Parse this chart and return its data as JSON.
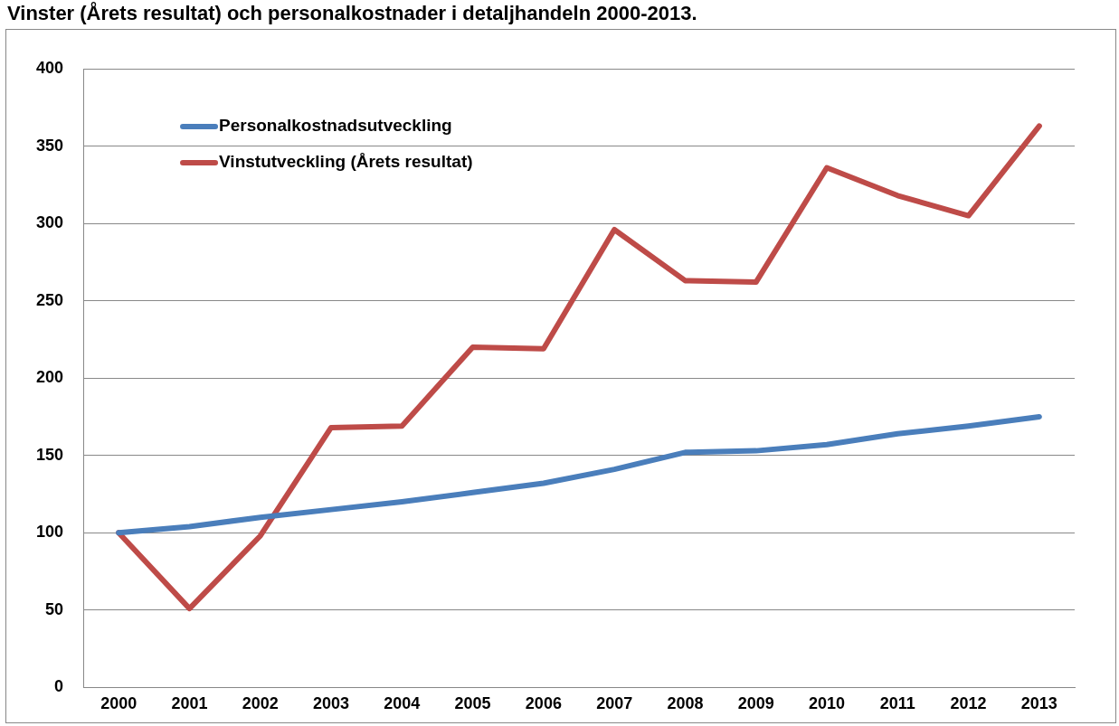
{
  "chart_data": {
    "type": "line",
    "title": "Vinster (Årets resultat) och personalkostnader i detaljhandeln 2000-2013.",
    "categories": [
      "2000",
      "2001",
      "2002",
      "2003",
      "2004",
      "2005",
      "2006",
      "2007",
      "2008",
      "2009",
      "2010",
      "2011",
      "2012",
      "2013"
    ],
    "series": [
      {
        "name": "Personalkostnadsutveckling",
        "color": "#4a7ebb",
        "values": [
          100,
          104,
          110,
          115,
          120,
          126,
          132,
          141,
          152,
          153,
          157,
          164,
          169,
          175
        ]
      },
      {
        "name": "Vinstutveckling (Årets resultat)",
        "color": "#be4b48",
        "values": [
          100,
          51,
          98,
          168,
          169,
          220,
          219,
          296,
          263,
          262,
          336,
          318,
          305,
          363
        ]
      }
    ],
    "ylim": [
      0,
      400
    ],
    "yticks": [
      0,
      50,
      100,
      150,
      200,
      250,
      300,
      350,
      400
    ],
    "grid": "y",
    "legend": "top left",
    "marker": "none",
    "line_style": "solid"
  }
}
